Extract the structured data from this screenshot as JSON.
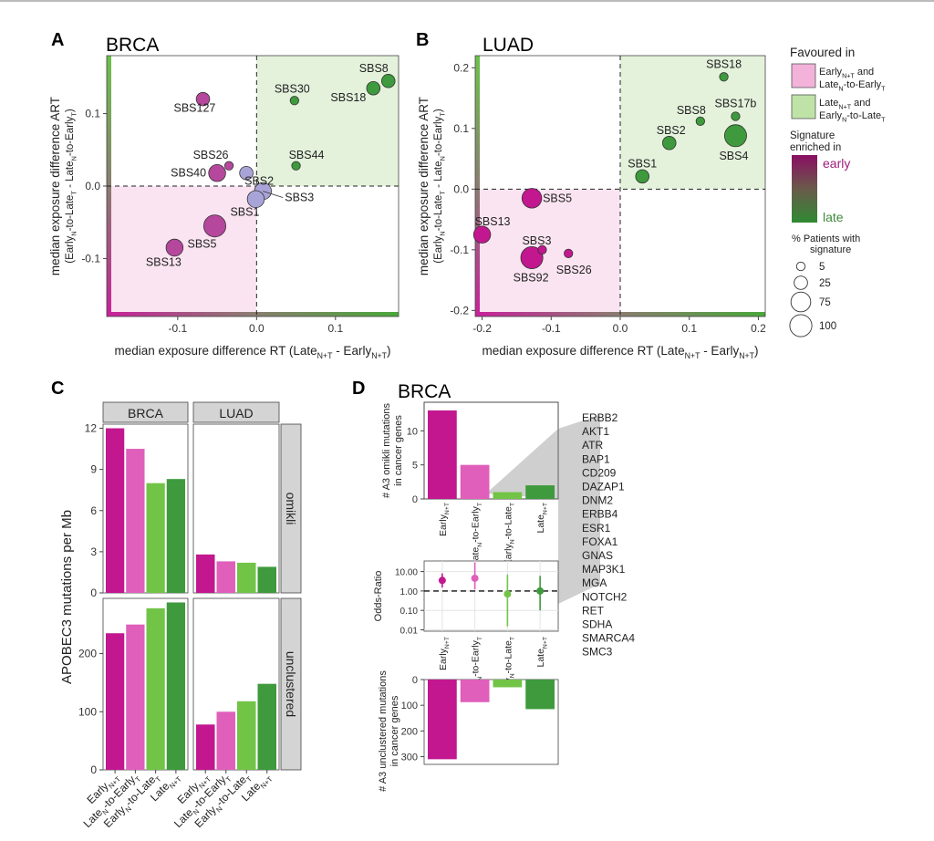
{
  "colors": {
    "early_nt": "#c2178f",
    "late_n_early_t": "#df5fbb",
    "early_n_late_t": "#72c447",
    "late_nt": "#3e9a3c",
    "pink_region": "#fbe4f1",
    "green_region": "#e4f2dc",
    "neutral_point": "#a9a4d8",
    "strip": "#d4d4d4"
  },
  "chart_data": [
    {
      "panel": "A",
      "type": "scatter",
      "title": "BRCA",
      "xlabel": "median exposure difference RT (Late_{N+T} - Early_{N+T})",
      "ylabel": "median exposure difference ART",
      "ylabel2": "(Early_{N}-to-Late_{T} - Late_{N}-to-Early_{T})",
      "xlim": [
        -0.19,
        0.18
      ],
      "ylim": [
        -0.18,
        0.18
      ],
      "xticks": [
        -0.1,
        0.0,
        0.1
      ],
      "xtick_labels": [
        "-0.1",
        "0.0",
        "0.1"
      ],
      "yticks": [
        -0.1,
        0.0,
        0.1
      ],
      "ytick_labels": [
        "-0.1",
        "0.0",
        "0.1"
      ],
      "points": [
        {
          "label": "SBS8",
          "x": 0.167,
          "y": 0.145,
          "size": 25,
          "class": "late"
        },
        {
          "label": "SBS18",
          "x": 0.148,
          "y": 0.135,
          "size": 25,
          "class": "late"
        },
        {
          "label": "SBS30",
          "x": 0.048,
          "y": 0.118,
          "size": 5,
          "class": "late"
        },
        {
          "label": "SBS44",
          "x": 0.05,
          "y": 0.028,
          "size": 5,
          "class": "late"
        },
        {
          "label": "SBS127",
          "x": -0.068,
          "y": 0.12,
          "size": 25,
          "class": "early"
        },
        {
          "label": "SBS26",
          "x": -0.035,
          "y": 0.028,
          "size": 5,
          "class": "early"
        },
        {
          "label": "SBS40",
          "x": -0.05,
          "y": 0.018,
          "size": 50,
          "class": "early"
        },
        {
          "label": "SBS2",
          "x": -0.013,
          "y": 0.018,
          "size": 25,
          "class": "neutral"
        },
        {
          "label": "SBS3",
          "x": 0.008,
          "y": -0.007,
          "size": 50,
          "class": "neutral"
        },
        {
          "label": "SBS1",
          "x": -0.001,
          "y": -0.018,
          "size": 50,
          "class": "neutral"
        },
        {
          "label": "SBS5",
          "x": -0.053,
          "y": -0.055,
          "size": 100,
          "class": "early"
        },
        {
          "label": "SBS13",
          "x": -0.104,
          "y": -0.085,
          "size": 50,
          "class": "early"
        }
      ]
    },
    {
      "panel": "B",
      "type": "scatter",
      "title": "LUAD",
      "xlabel": "median exposure difference RT (Late_{N+T} - Early_{N+T})",
      "ylabel": "median exposure difference ART",
      "ylabel2": "(Early_{N}-to-Late_{T} - Late_{N}-to-Early_{T})",
      "xlim": [
        -0.21,
        0.21
      ],
      "ylim": [
        -0.21,
        0.22
      ],
      "xticks": [
        -0.2,
        -0.1,
        0.0,
        0.1,
        0.2
      ],
      "xtick_labels": [
        "-0.2",
        "-0.1",
        "0.0",
        "0.1",
        "0.2"
      ],
      "yticks": [
        -0.2,
        -0.1,
        0.0,
        0.1,
        0.2
      ],
      "ytick_labels": [
        "-0.2",
        "-0.1",
        "0.0",
        "0.1",
        "0.2"
      ],
      "points": [
        {
          "label": "SBS18",
          "x": 0.15,
          "y": 0.185,
          "size": 5,
          "class": "late"
        },
        {
          "label": "SBS8",
          "x": 0.116,
          "y": 0.112,
          "size": 5,
          "class": "late"
        },
        {
          "label": "SBS17b",
          "x": 0.167,
          "y": 0.12,
          "size": 5,
          "class": "late"
        },
        {
          "label": "SBS2",
          "x": 0.071,
          "y": 0.076,
          "size": 25,
          "class": "late"
        },
        {
          "label": "SBS4",
          "x": 0.167,
          "y": 0.088,
          "size": 100,
          "class": "late"
        },
        {
          "label": "SBS1",
          "x": 0.032,
          "y": 0.021,
          "size": 25,
          "class": "late"
        },
        {
          "label": "SBS5",
          "x": -0.128,
          "y": -0.015,
          "size": 75,
          "class": "early"
        },
        {
          "label": "SBS13",
          "x": -0.2,
          "y": -0.075,
          "size": 50,
          "class": "early"
        },
        {
          "label": "SBS3",
          "x": -0.113,
          "y": -0.1,
          "size": 5,
          "class": "early"
        },
        {
          "label": "SBS92",
          "x": -0.128,
          "y": -0.113,
          "size": 100,
          "class": "early"
        },
        {
          "label": "SBS26",
          "x": -0.075,
          "y": -0.106,
          "size": 5,
          "class": "early"
        }
      ]
    },
    {
      "panel": "C",
      "type": "bar",
      "ylabel": "APOBEC3 mutations per Mb",
      "categories": [
        "Early_{N+T}",
        "Late_{N}-to-Early_{T}",
        "Early_{N}-to-Late_{T}",
        "Late_{N+T}"
      ],
      "facet_cols": [
        "BRCA",
        "LUAD"
      ],
      "facet_rows": [
        "omikli",
        "unclustered"
      ],
      "omikli": {
        "ylim": [
          0,
          12.3
        ],
        "yticks": [
          0,
          3,
          6,
          9,
          12
        ],
        "BRCA": [
          12.0,
          10.5,
          8.0,
          8.3
        ],
        "LUAD": [
          2.8,
          2.3,
          2.2,
          1.9
        ]
      },
      "unclustered": {
        "ylim": [
          0,
          295
        ],
        "yticks": [
          0,
          100,
          200
        ],
        "BRCA": [
          235,
          250,
          278,
          288
        ],
        "LUAD": [
          78,
          100,
          118,
          148
        ]
      }
    },
    {
      "panel": "D",
      "type": "bar",
      "title": "BRCA",
      "categories": [
        "Early_{N+T}",
        "Late_{N}-to-Early_{T}",
        "Early_{N}-to-Late_{T}",
        "Late_{N+T}"
      ],
      "top": {
        "ylabel": "# A3 omikli mutations",
        "ylabel2": "in cancer genes",
        "ylim": [
          0,
          14.2
        ],
        "yticks": [
          0,
          5,
          10
        ],
        "values": [
          13,
          5,
          1,
          2
        ]
      },
      "middle": {
        "type": "scatter",
        "ylabel": "Odds-Ratio",
        "scale": "log",
        "yticks": [
          0.01,
          0.1,
          1.0,
          10.0
        ],
        "ytick_labels": [
          "0.01",
          "0.10",
          "1.00",
          "10.00"
        ],
        "reference_line": 1.0,
        "estimates": [
          3.5,
          4.5,
          0.7,
          1.0
        ],
        "ci_low": [
          1.5,
          1.2,
          0.015,
          0.1
        ],
        "ci_high": [
          8.0,
          30.0,
          7.0,
          6.0
        ]
      },
      "bottom": {
        "ylabel": "# A3 unclustered mutations",
        "ylabel2": "in cancer genes",
        "reversed": true,
        "ylim": [
          0,
          330
        ],
        "yticks": [
          0,
          100,
          200,
          300
        ],
        "values": [
          310,
          88,
          30,
          115
        ]
      },
      "gene_list": [
        "ERBB2",
        "AKT1",
        "ATR",
        "BAP1",
        "CD209",
        "DAZAP1",
        "DNM2",
        "ERBB4",
        "ESR1",
        "FOXA1",
        "GNAS",
        "MAP3K1",
        "MGA",
        "NOTCH2",
        "RET",
        "SDHA",
        "SMARCA4",
        "SMC3"
      ]
    }
  ],
  "legend": {
    "favoured_title": "Favoured in",
    "favoured_pink": [
      "Early_{N+T} and",
      "Late_{N}-to-Early_{T}"
    ],
    "favoured_green": [
      "Late_{N+T} and",
      "Early_{N}-to-Late_{T}"
    ],
    "enriched_title": [
      "Signature",
      "enriched in"
    ],
    "enriched_early": "early",
    "enriched_late": "late",
    "size_title": [
      "% Patients with",
      "signature"
    ],
    "size_values": [
      5,
      25,
      75,
      100
    ],
    "size_labels": [
      "5",
      "25",
      "75",
      "100"
    ]
  },
  "panel_letters": [
    "A",
    "B",
    "C",
    "D"
  ]
}
